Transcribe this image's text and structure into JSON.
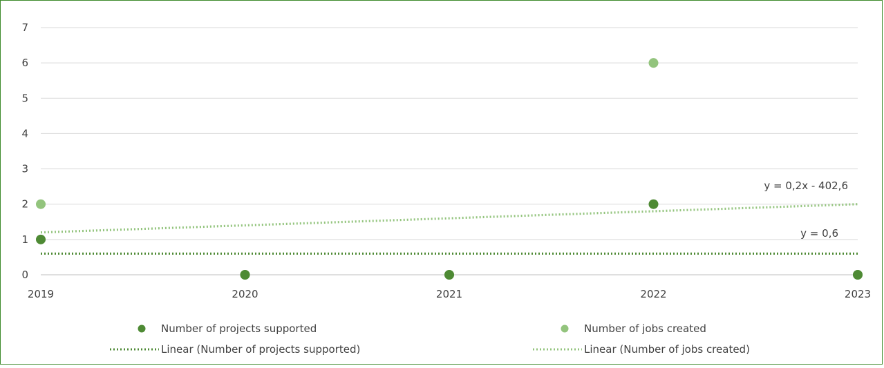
{
  "chart_data": {
    "type": "scatter",
    "x": [
      2019,
      2020,
      2021,
      2022,
      2023
    ],
    "xlim": [
      2019,
      2023
    ],
    "ylim": [
      0,
      7
    ],
    "y_ticks": [
      "0",
      "1",
      "2",
      "3",
      "4",
      "5",
      "6",
      "7"
    ],
    "x_ticks": [
      "2019",
      "2020",
      "2021",
      "2022",
      "2023"
    ],
    "grid": true,
    "legend_position": "bottom",
    "series": [
      {
        "name": "Number of projects supported",
        "color": "#4e8a34",
        "values": [
          1,
          0,
          0,
          2,
          0
        ]
      },
      {
        "name": "Number of jobs created",
        "color": "#93c47d",
        "values": [
          2,
          0,
          0,
          6,
          0
        ]
      }
    ],
    "trendlines": [
      {
        "name": "Linear (Number of projects supported)",
        "color": "#4e8a34",
        "equation": "y = 0,6",
        "y_start": 0.6,
        "y_end": 0.6
      },
      {
        "name": "Linear (Number of jobs created)",
        "color": "#93c47d",
        "equation": "y = 0,2x - 402,6",
        "y_start": 1.2,
        "y_end": 2.0
      }
    ]
  }
}
